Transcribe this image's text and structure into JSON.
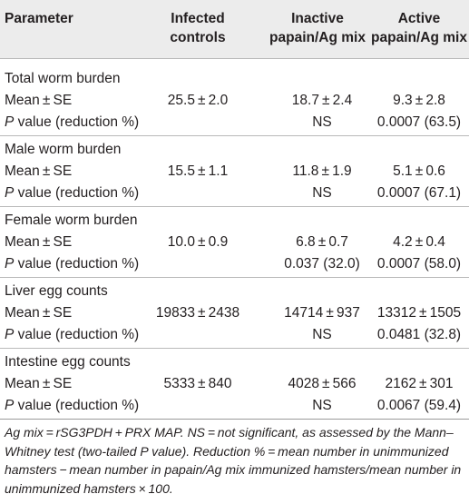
{
  "header": {
    "parameter": "Parameter",
    "col1_line1": "Infected",
    "col1_line2": "controls",
    "col2_line1": "Inactive",
    "col2_line2": "papain/Ag mix",
    "col3_line1": "Active",
    "col3_line2": "papain/Ag mix"
  },
  "sections": [
    {
      "title": "Total worm burden",
      "mean_label": "Mean ± SE",
      "mean": [
        "25.5 ± 2.0",
        "18.7 ± 2.4",
        "9.3 ± 2.8"
      ],
      "p_label_italic": "P",
      "p_label_rest": " value (reduction %)",
      "p": [
        "",
        "NS",
        "0.0007 (63.5)"
      ]
    },
    {
      "title": "Male worm burden",
      "mean_label": "Mean ± SE",
      "mean": [
        "15.5 ± 1.1",
        "11.8 ± 1.9",
        "5.1 ± 0.6"
      ],
      "p_label_italic": "P",
      "p_label_rest": " value (reduction %)",
      "p": [
        "",
        "NS",
        "0.0007 (67.1)"
      ]
    },
    {
      "title": "Female worm burden",
      "mean_label": "Mean ± SE",
      "mean": [
        "10.0 ± 0.9",
        "6.8 ± 0.7",
        "4.2 ± 0.4"
      ],
      "p_label_italic": "P",
      "p_label_rest": " value (reduction %)",
      "p": [
        "",
        "0.037 (32.0)",
        "0.0007 (58.0)"
      ]
    },
    {
      "title": "Liver egg counts",
      "mean_label": "Mean ± SE",
      "mean": [
        "19833 ± 2438",
        "14714 ± 937",
        "13312 ± 1505"
      ],
      "p_label_italic": "P",
      "p_label_rest": " value (reduction %)",
      "p": [
        "",
        "NS",
        "0.0481 (32.8)"
      ]
    },
    {
      "title": "Intestine egg counts",
      "mean_label": "Mean ± SE",
      "mean": [
        "5333 ± 840",
        "4028 ± 566",
        "2162 ± 301"
      ],
      "p_label_italic": "P",
      "p_label_rest": " value (reduction %)",
      "p": [
        "",
        "NS",
        "0.0067 (59.4)"
      ]
    }
  ],
  "footnote": "Ag mix = rSG3PDH + PRX MAP. NS = not significant, as assessed by the Mann–Whitney test (two-tailed P value). Reduction % = mean number in unimmunized hamsters − mean number in papain/Ag mix immunized hamsters/mean number in unimmunized hamsters × 100."
}
